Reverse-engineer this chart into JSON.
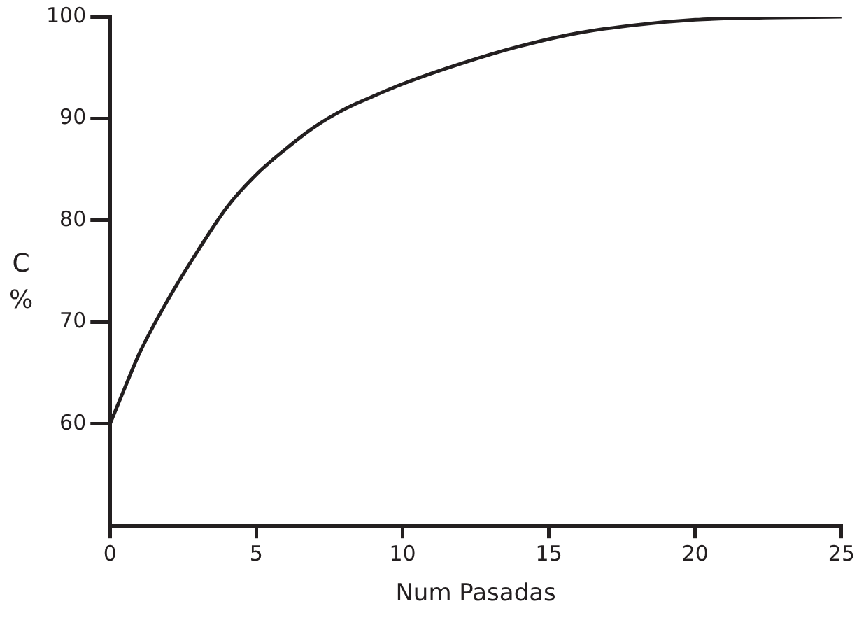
{
  "chart_data": {
    "type": "line",
    "xlabel": "Num Pasadas",
    "ylabel": "C %",
    "x": [
      0,
      0.5,
      1,
      2,
      3,
      4,
      5,
      6,
      7,
      8,
      9,
      10,
      12,
      14,
      16,
      18,
      20,
      22,
      25
    ],
    "series": [
      {
        "color": "#231f20",
        "values": [
          60,
          63.5,
          66.9,
          72.3,
          77,
          81.3,
          84.5,
          87,
          89.2,
          90.9,
          92.2,
          93.4,
          95.4,
          97.1,
          98.4,
          99.2,
          99.7,
          99.9,
          100
        ]
      }
    ],
    "xlim": [
      0,
      25
    ],
    "xticks": [
      0,
      5,
      10,
      15,
      20,
      25
    ],
    "ylim": [
      50,
      100
    ],
    "yticks": [
      60,
      70,
      80,
      90,
      100
    ],
    "legend": false,
    "marker": "none",
    "line_style": "solid"
  }
}
